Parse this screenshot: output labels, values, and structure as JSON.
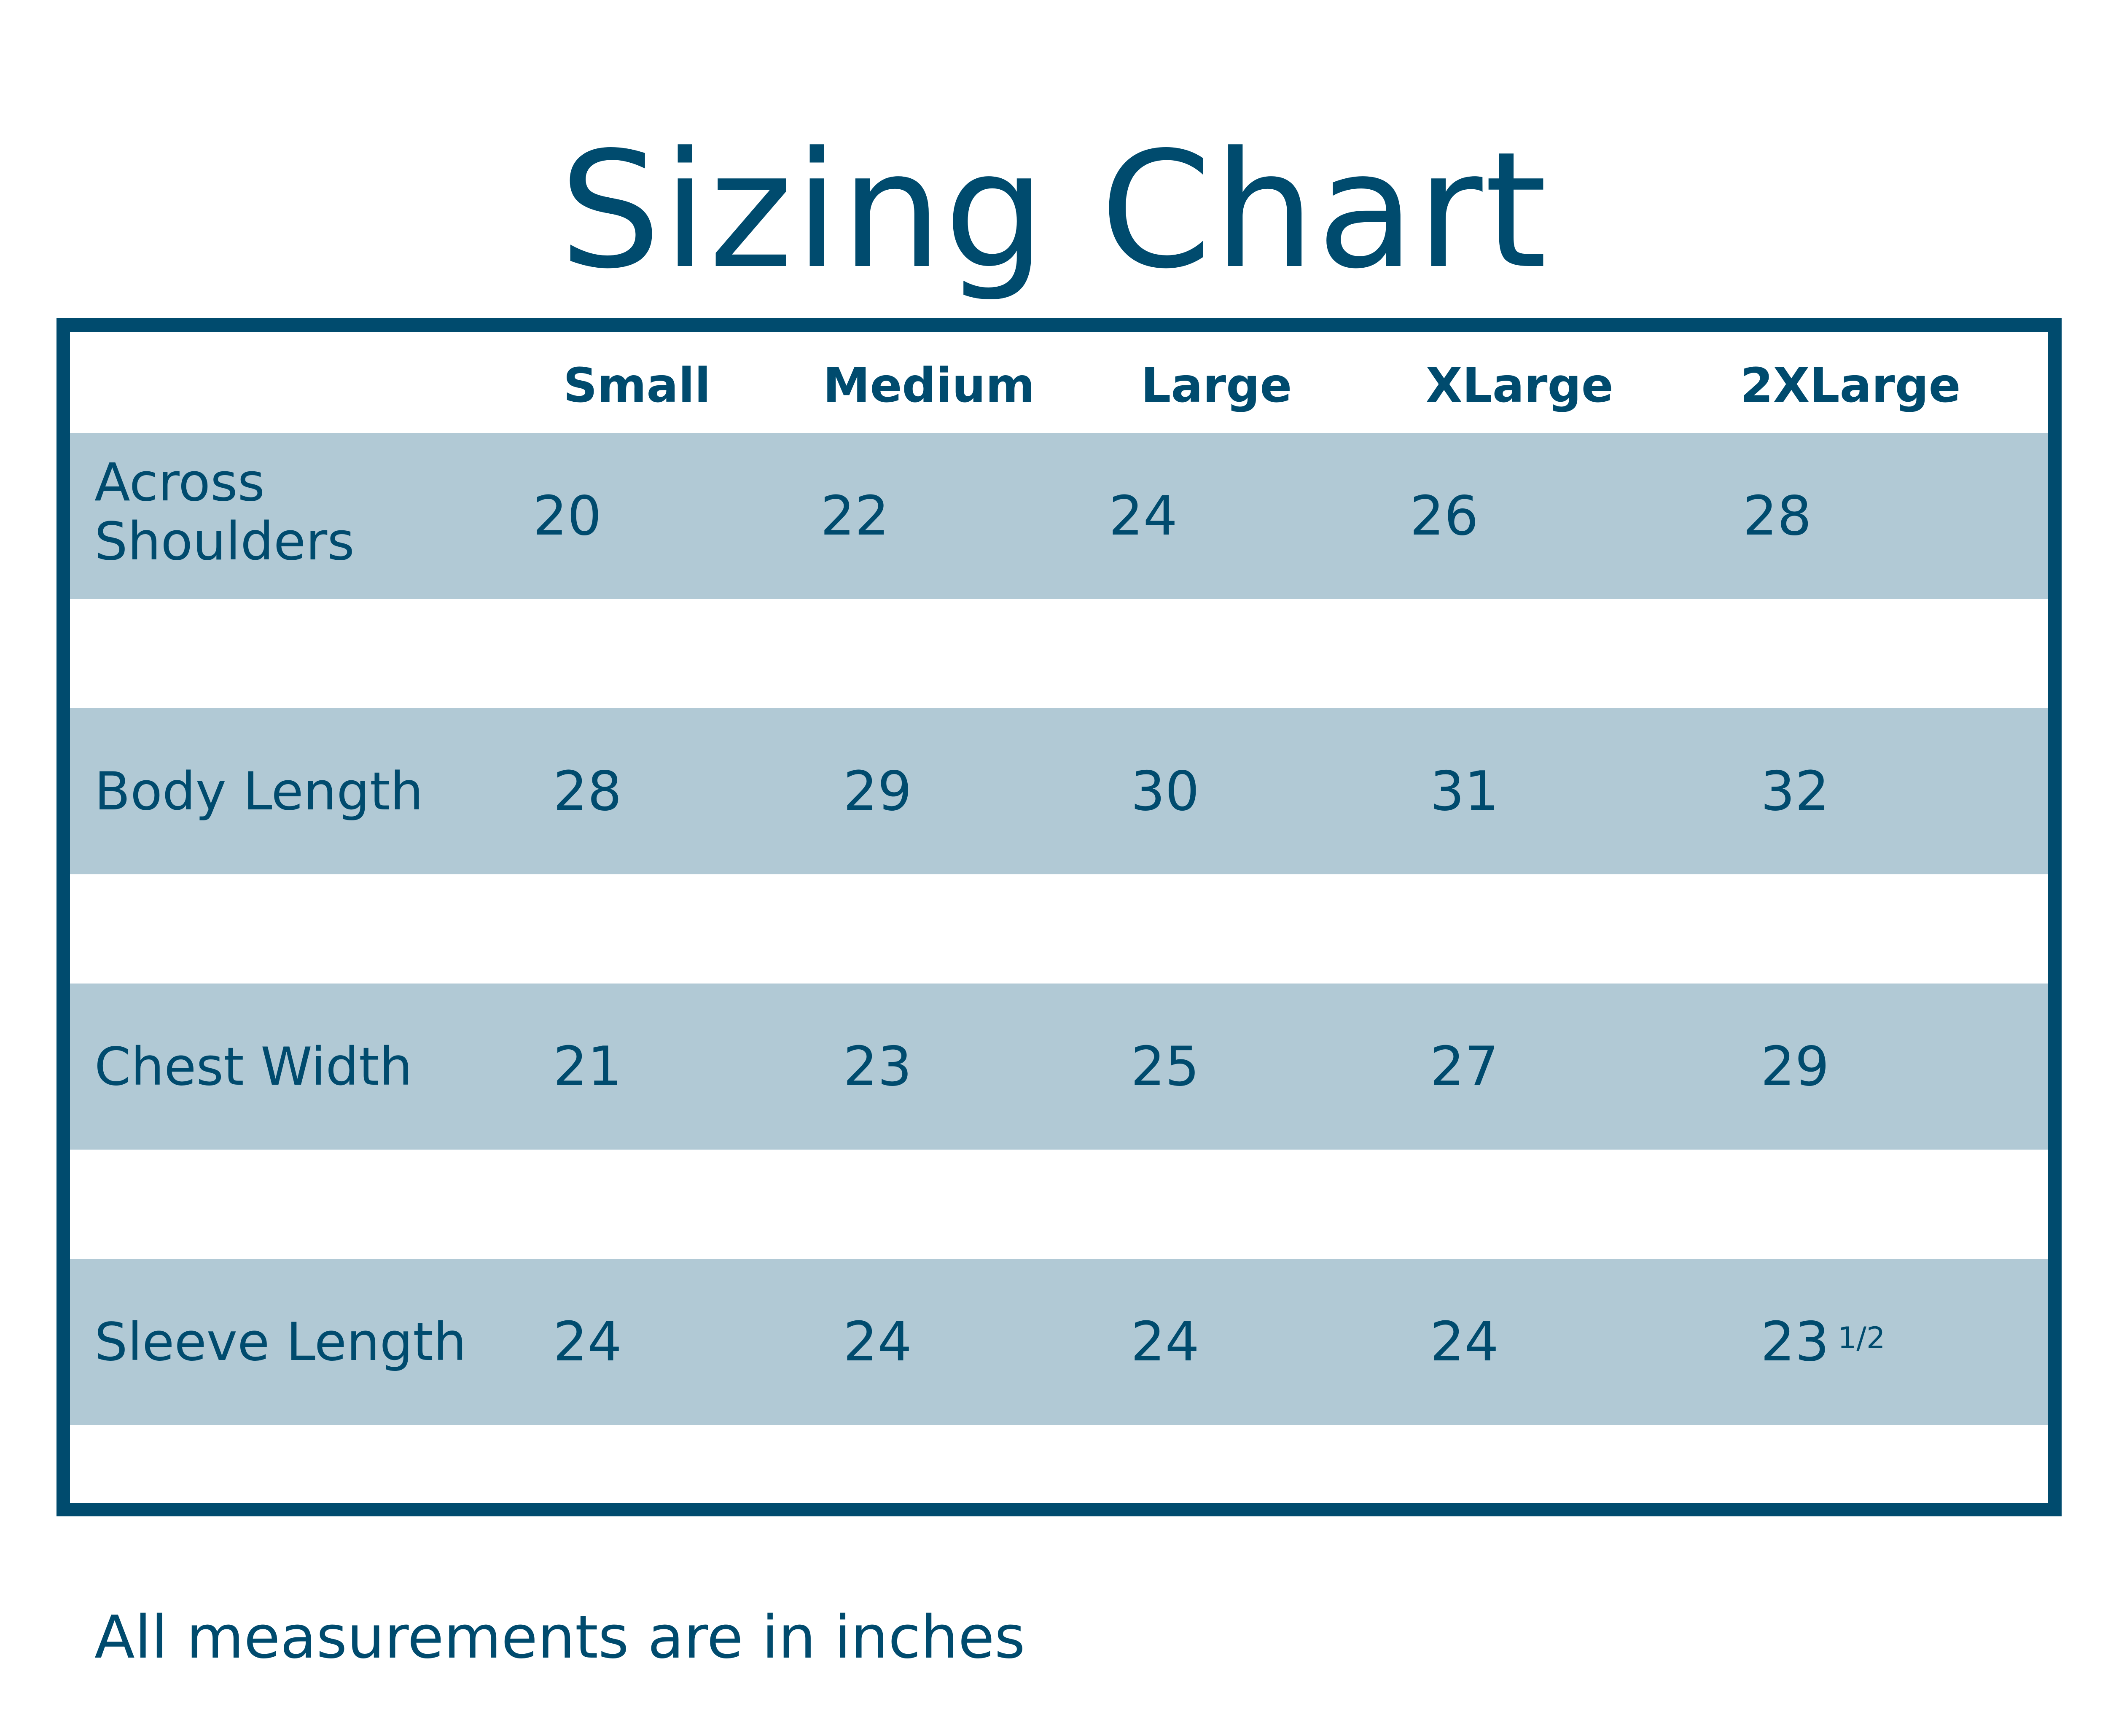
{
  "title": "Sizing Chart",
  "colors": {
    "primary": "#004b6e",
    "band": "#b1c9d5"
  },
  "table": {
    "columns": [
      "Small",
      "Medium",
      "Large",
      "XLarge",
      "2XLarge"
    ],
    "rows": [
      {
        "label_line1": "Across",
        "label_line2": "Shoulders",
        "values": [
          "20",
          "22",
          "24",
          "26",
          "28"
        ]
      },
      {
        "label": "Body Length",
        "values": [
          "28",
          "29",
          "30",
          "31",
          "32"
        ]
      },
      {
        "label": "Chest Width",
        "values": [
          "21",
          "23",
          "25",
          "27",
          "29"
        ]
      },
      {
        "label": "Sleeve Length",
        "values": [
          "24",
          "24",
          "24",
          "24",
          "23"
        ],
        "last_fraction": "1/2"
      }
    ]
  },
  "footer": "All measurements are in inches"
}
